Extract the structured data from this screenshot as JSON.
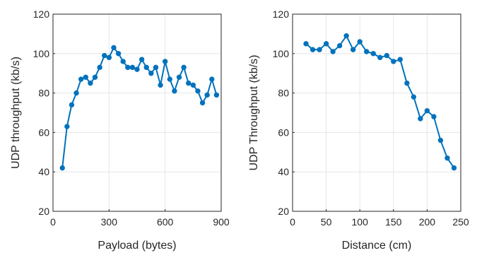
{
  "colors": {
    "series": "#0072BD",
    "axis": "#262626",
    "grid": "#e6e6e6"
  },
  "chart_data": [
    {
      "type": "line",
      "title": "",
      "xlabel": "Payload (bytes)",
      "ylabel": "UDP throughput (kb/s)",
      "xlim": [
        0,
        900
      ],
      "ylim": [
        20,
        120
      ],
      "xticks": [
        0,
        300,
        600,
        900
      ],
      "yticks": [
        20,
        40,
        60,
        80,
        100,
        120
      ],
      "grid": true,
      "series": [
        {
          "x": [
            50,
            75,
            100,
            125,
            150,
            175,
            200,
            225,
            250,
            275,
            300,
            325,
            350,
            375,
            400,
            425,
            450,
            475,
            500,
            525,
            550,
            575,
            600,
            625,
            650,
            675,
            700,
            725,
            750,
            775,
            800,
            825,
            850,
            875
          ],
          "y": [
            42,
            63,
            74,
            80,
            87,
            88,
            85,
            88,
            93,
            99,
            98,
            103,
            100,
            96,
            93,
            93,
            92,
            97,
            93,
            90,
            93,
            84,
            96,
            87,
            81,
            88,
            93,
            85,
            84,
            81,
            75,
            79,
            87,
            79
          ]
        }
      ]
    },
    {
      "type": "line",
      "title": "",
      "xlabel": "Distance (cm)",
      "ylabel": "UDP Throughput (kb/s)",
      "xlim": [
        0,
        250
      ],
      "ylim": [
        20,
        120
      ],
      "xticks": [
        0,
        50,
        100,
        150,
        200,
        250
      ],
      "yticks": [
        20,
        40,
        60,
        80,
        100,
        120
      ],
      "grid": true,
      "series": [
        {
          "x": [
            20,
            30,
            40,
            50,
            60,
            70,
            80,
            90,
            100,
            110,
            120,
            130,
            140,
            150,
            160,
            170,
            180,
            190,
            200,
            210,
            220,
            230,
            240
          ],
          "y": [
            105,
            102,
            102,
            105,
            101,
            104,
            109,
            102,
            106,
            101,
            100,
            98,
            99,
            96,
            97,
            85,
            78,
            67,
            71,
            68,
            56,
            47,
            42
          ]
        }
      ]
    }
  ]
}
